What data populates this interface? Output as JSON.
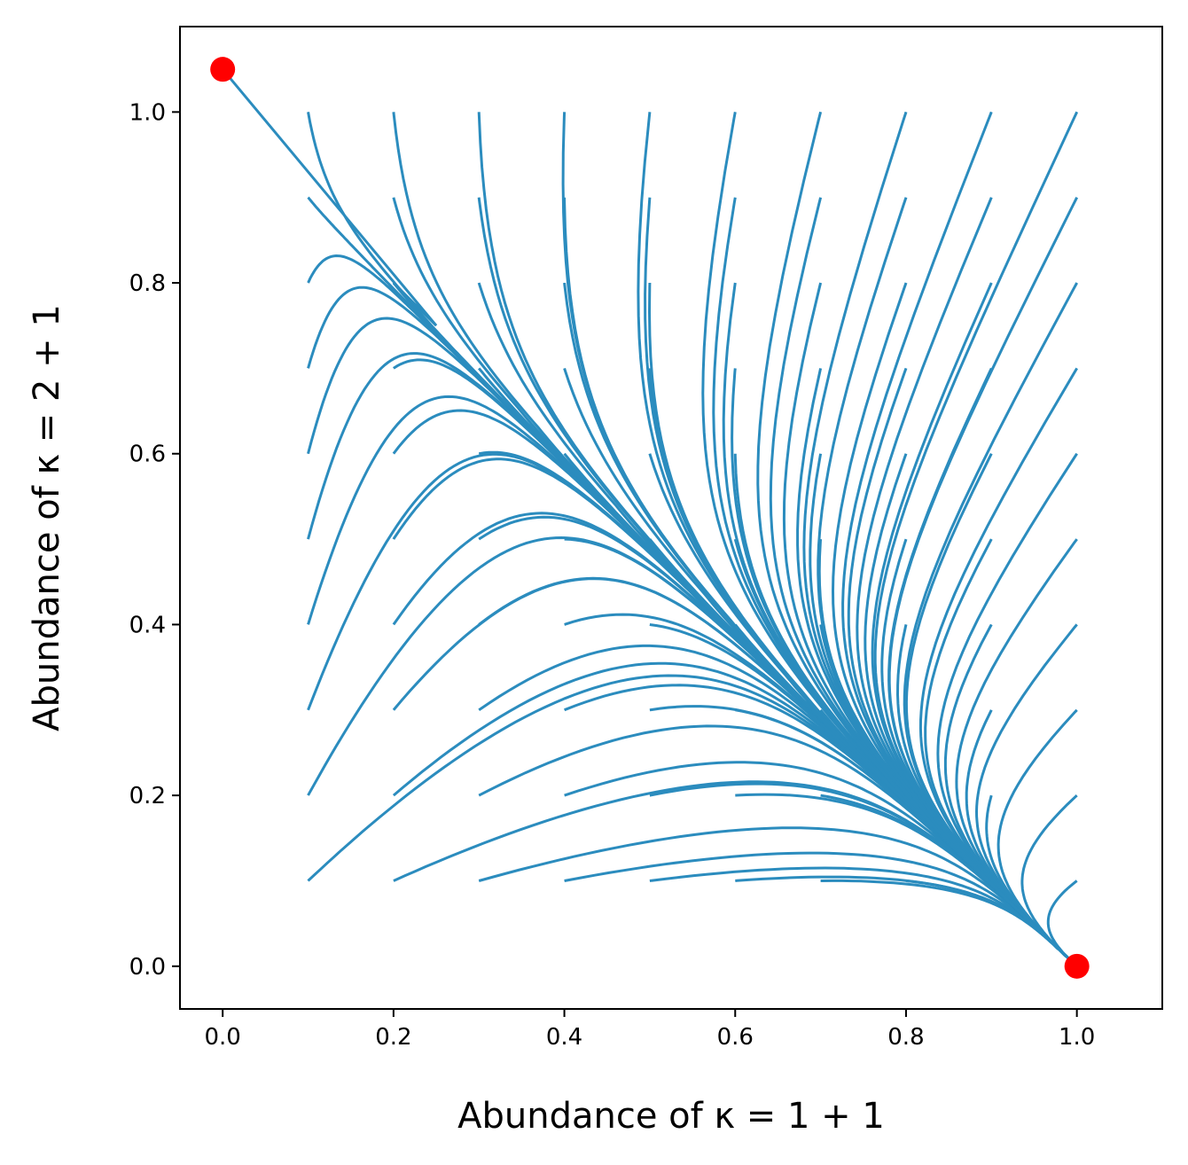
{
  "chart_data": {
    "type": "line",
    "title": "",
    "xlabel": "Abundance of κ = 1 + 1",
    "ylabel": "Abundance of κ = 2 + 1",
    "xlim": [
      -0.05,
      1.1
    ],
    "ylim": [
      -0.05,
      1.1
    ],
    "xticks": [
      "0.0",
      "0.2",
      "0.4",
      "0.6",
      "0.8",
      "1.0"
    ],
    "yticks": [
      "0.0",
      "0.2",
      "0.4",
      "0.6",
      "0.8",
      "1.0"
    ],
    "grid": false,
    "legend": "none",
    "line_color": "#2b8cbe",
    "marker_color": "#ff0000",
    "trajectory_starts": {
      "x": [
        0.1,
        0.2,
        0.3,
        0.4,
        0.5,
        0.6,
        0.7,
        0.8,
        0.9,
        1.0
      ],
      "y": [
        0.1,
        0.2,
        0.3,
        0.4,
        0.5,
        0.6,
        0.7,
        0.8,
        0.9,
        1.0
      ]
    },
    "endpoints": [
      {
        "x": 0.0,
        "y": 1.05
      },
      {
        "x": 1.0,
        "y": 0.0
      }
    ]
  }
}
